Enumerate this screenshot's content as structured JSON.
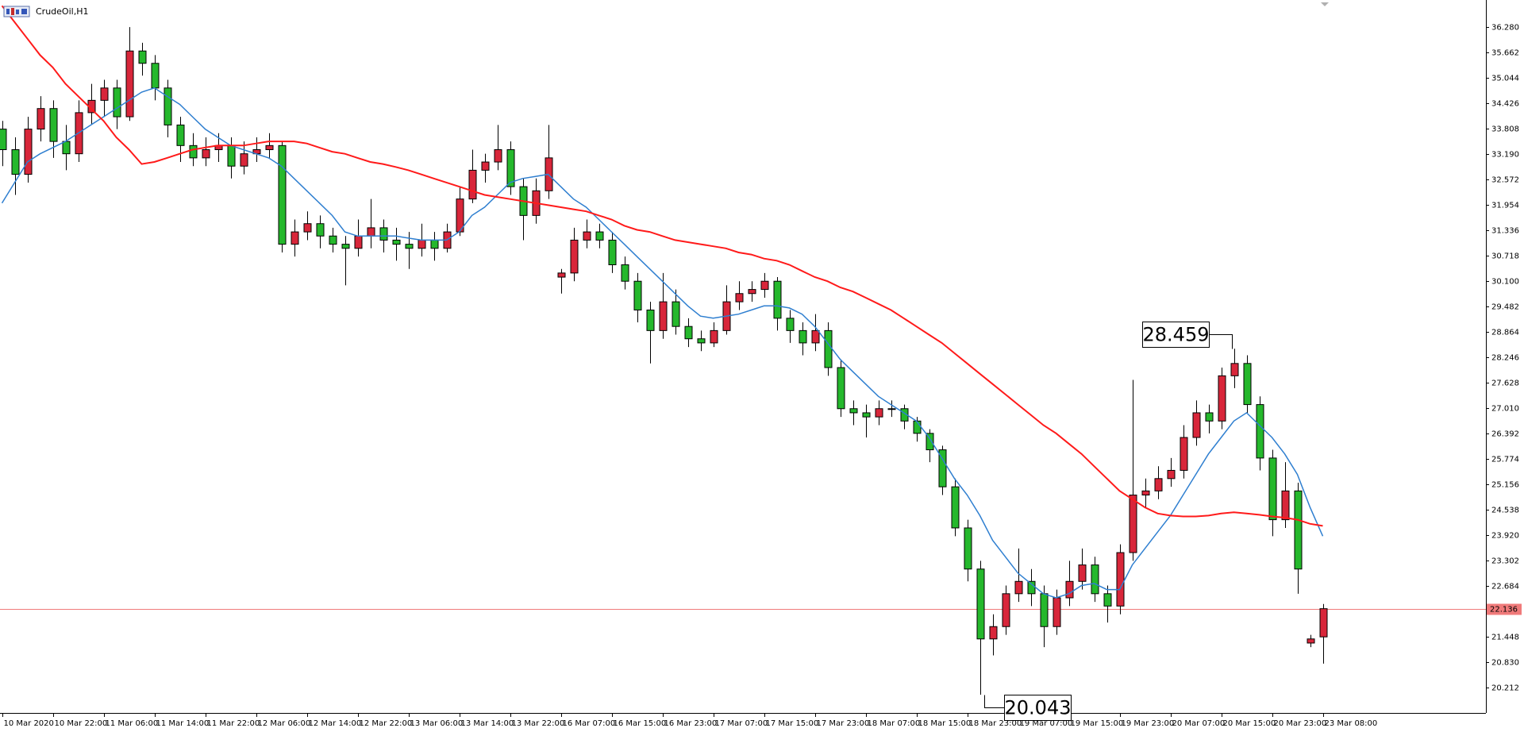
{
  "chart_data": {
    "type": "candlestick",
    "title": "CrudeOil,H1",
    "categories": [
      "10 Mar 2020",
      null,
      null,
      null,
      "10 Mar 22:00",
      null,
      null,
      null,
      "11 Mar 06:00",
      null,
      null,
      null,
      "11 Mar 14:00",
      null,
      null,
      null,
      "11 Mar 22:00",
      null,
      null,
      null,
      "12 Mar 06:00",
      null,
      null,
      null,
      "12 Mar 14:00",
      null,
      null,
      null,
      "12 Mar 22:00",
      null,
      null,
      null,
      "13 Mar 06:00",
      null,
      null,
      null,
      "13 Mar 14:00",
      null,
      null,
      null,
      "13 Mar 22:00",
      null,
      null,
      null,
      "16 Mar 07:00",
      null,
      null,
      null,
      "16 Mar 15:00",
      null,
      null,
      null,
      "16 Mar 23:00",
      null,
      null,
      null,
      "17 Mar 07:00",
      null,
      null,
      null,
      "17 Mar 15:00",
      null,
      null,
      null,
      "17 Mar 23:00",
      null,
      null,
      null,
      "18 Mar 07:00",
      null,
      null,
      null,
      "18 Mar 15:00",
      null,
      null,
      null,
      "18 Mar 23:00",
      null,
      null,
      null,
      "19 Mar 07:00",
      null,
      null,
      null,
      "19 Mar 15:00",
      null,
      null,
      null,
      "19 Mar 23:00",
      null,
      null,
      null,
      "20 Mar 07:00",
      null,
      null,
      null,
      "20 Mar 15:00",
      null,
      null,
      null,
      "20 Mar 23:00",
      null,
      null,
      null,
      "23 Mar 08:00"
    ],
    "open": [
      33.8,
      33.3,
      32.7,
      33.8,
      34.3,
      33.5,
      33.2,
      34.2,
      34.5,
      34.8,
      34.1,
      35.7,
      35.4,
      34.8,
      33.9,
      33.4,
      33.1,
      33.3,
      33.4,
      32.9,
      33.2,
      33.3,
      33.4,
      31.0,
      31.3,
      31.5,
      31.2,
      31.0,
      30.9,
      31.2,
      31.4,
      31.1,
      31.0,
      30.9,
      31.1,
      30.9,
      31.3,
      32.1,
      32.8,
      33.0,
      33.3,
      32.4,
      31.7,
      32.3,
      30.2,
      30.3,
      31.1,
      31.3,
      31.1,
      30.5,
      30.1,
      29.4,
      28.9,
      29.6,
      29.0,
      28.7,
      28.6,
      28.9,
      29.6,
      29.8,
      29.9,
      30.1,
      29.2,
      28.9,
      28.6,
      28.9,
      28.0,
      27.0,
      26.9,
      26.8,
      27.0,
      27.0,
      26.7,
      26.4,
      26.0,
      25.1,
      24.1,
      23.1,
      21.4,
      21.7,
      22.5,
      22.8,
      22.5,
      21.7,
      22.4,
      22.8,
      23.2,
      22.5,
      22.2,
      23.5,
      24.9,
      25.0,
      25.3,
      25.5,
      26.3,
      26.9,
      26.7,
      27.8,
      28.1,
      27.1,
      25.8,
      24.3,
      25.0,
      21.3,
      21.45
    ],
    "high": [
      34.0,
      33.6,
      34.1,
      34.6,
      34.5,
      33.9,
      34.5,
      34.9,
      35.0,
      35.0,
      36.28,
      35.9,
      35.6,
      35.0,
      34.1,
      33.7,
      33.6,
      33.7,
      33.6,
      33.5,
      33.6,
      33.7,
      33.5,
      31.6,
      31.8,
      31.7,
      31.4,
      31.2,
      31.6,
      32.1,
      31.6,
      31.4,
      31.3,
      31.5,
      31.3,
      31.5,
      32.4,
      33.3,
      33.2,
      33.9,
      33.5,
      32.6,
      32.6,
      33.9,
      30.4,
      31.4,
      31.6,
      31.5,
      31.3,
      30.7,
      30.3,
      29.6,
      30.3,
      29.9,
      29.2,
      28.9,
      29.1,
      30.0,
      30.1,
      30.1,
      30.3,
      30.2,
      29.4,
      29.1,
      29.3,
      29.1,
      28.2,
      27.2,
      27.1,
      27.2,
      27.2,
      27.1,
      26.8,
      26.5,
      26.1,
      25.3,
      24.3,
      23.3,
      22.0,
      22.7,
      23.6,
      23.1,
      22.7,
      22.6,
      23.3,
      23.6,
      23.4,
      22.7,
      23.7,
      27.7,
      25.3,
      25.6,
      25.8,
      26.6,
      27.2,
      27.1,
      28.0,
      28.459,
      28.3,
      27.3,
      26.0,
      25.7,
      25.2,
      21.5,
      22.25
    ],
    "low": [
      32.9,
      32.2,
      32.5,
      33.5,
      33.1,
      32.8,
      33.0,
      33.9,
      34.1,
      33.8,
      34.0,
      35.1,
      34.5,
      33.6,
      33.0,
      32.9,
      32.9,
      33.0,
      32.6,
      32.7,
      33.0,
      33.1,
      30.8,
      30.7,
      31.1,
      30.9,
      30.8,
      30.0,
      30.7,
      30.9,
      30.8,
      30.6,
      30.4,
      30.7,
      30.6,
      30.8,
      31.2,
      32.0,
      32.5,
      32.8,
      32.2,
      31.1,
      31.5,
      32.1,
      29.8,
      30.1,
      30.9,
      30.9,
      30.3,
      29.9,
      29.1,
      28.1,
      28.7,
      28.8,
      28.5,
      28.4,
      28.5,
      28.8,
      29.4,
      29.6,
      29.7,
      28.9,
      28.6,
      28.3,
      28.4,
      27.8,
      26.8,
      26.6,
      26.3,
      26.6,
      26.8,
      26.5,
      26.2,
      25.7,
      24.9,
      23.9,
      22.8,
      20.043,
      21.0,
      21.5,
      22.3,
      22.2,
      21.2,
      21.5,
      22.2,
      22.6,
      22.3,
      21.8,
      22.0,
      23.3,
      24.6,
      24.8,
      25.1,
      25.3,
      26.1,
      26.4,
      26.5,
      27.5,
      26.9,
      25.5,
      23.9,
      24.1,
      22.5,
      21.2,
      20.8
    ],
    "close": [
      33.3,
      32.7,
      33.8,
      34.3,
      33.5,
      33.2,
      34.2,
      34.5,
      34.8,
      34.1,
      35.7,
      35.4,
      34.8,
      33.9,
      33.4,
      33.1,
      33.3,
      33.4,
      32.9,
      33.2,
      33.3,
      33.4,
      31.0,
      31.3,
      31.5,
      31.2,
      31.0,
      30.9,
      31.2,
      31.4,
      31.1,
      31.0,
      30.9,
      31.1,
      30.9,
      31.3,
      32.1,
      32.8,
      33.0,
      33.3,
      32.4,
      31.7,
      32.3,
      33.1,
      30.3,
      31.1,
      31.3,
      31.1,
      30.5,
      30.1,
      29.4,
      28.9,
      29.6,
      29.0,
      28.7,
      28.6,
      28.9,
      29.6,
      29.8,
      29.9,
      30.1,
      29.2,
      28.9,
      28.6,
      28.9,
      28.0,
      27.0,
      26.9,
      26.8,
      27.0,
      27.0,
      26.7,
      26.4,
      26.0,
      25.1,
      24.1,
      23.1,
      21.4,
      21.7,
      22.5,
      22.8,
      22.5,
      21.7,
      22.4,
      22.8,
      23.2,
      22.5,
      22.2,
      23.5,
      24.9,
      25.0,
      25.3,
      25.5,
      26.3,
      26.9,
      26.7,
      27.8,
      28.1,
      27.1,
      25.8,
      24.3,
      25.0,
      23.1,
      21.4,
      22.136
    ],
    "up_color": "#d8263a",
    "down_color": "#25b82c",
    "wick_color": "#000000",
    "overlays": [
      {
        "color": "#2f7fd0",
        "values": [
          32.0,
          32.5,
          33.0,
          33.2,
          33.35,
          33.5,
          33.7,
          33.9,
          34.1,
          34.3,
          34.5,
          34.7,
          34.8,
          34.6,
          34.4,
          34.1,
          33.8,
          33.6,
          33.4,
          33.3,
          33.2,
          33.1,
          32.9,
          32.6,
          32.3,
          32.0,
          31.7,
          31.3,
          31.2,
          31.2,
          31.2,
          31.2,
          31.15,
          31.1,
          31.1,
          31.1,
          31.3,
          31.7,
          31.9,
          32.2,
          32.5,
          32.6,
          32.65,
          32.7,
          32.4,
          32.1,
          31.9,
          31.6,
          31.3,
          31.0,
          30.7,
          30.4,
          30.1,
          29.8,
          29.5,
          29.25,
          29.2,
          29.25,
          29.3,
          29.4,
          29.5,
          29.5,
          29.45,
          29.3,
          29.0,
          28.6,
          28.2,
          27.9,
          27.6,
          27.3,
          27.1,
          26.9,
          26.7,
          26.3,
          25.8,
          25.3,
          24.9,
          24.4,
          23.8,
          23.4,
          23.0,
          22.75,
          22.5,
          22.4,
          22.5,
          22.7,
          22.75,
          22.6,
          22.6,
          23.2,
          23.6,
          24.0,
          24.4,
          24.9,
          25.4,
          25.9,
          26.3,
          26.7,
          26.9,
          26.6,
          26.3,
          25.9,
          25.4,
          24.6,
          23.9
        ]
      },
      {
        "color": "#ff1a1a",
        "values": [
          36.8,
          36.4,
          36.0,
          35.6,
          35.3,
          34.9,
          34.6,
          34.3,
          34.0,
          33.6,
          33.3,
          32.95,
          33.0,
          33.1,
          33.2,
          33.3,
          33.35,
          33.4,
          33.4,
          33.4,
          33.45,
          33.5,
          33.5,
          33.5,
          33.45,
          33.35,
          33.25,
          33.2,
          33.1,
          33.0,
          32.95,
          32.88,
          32.8,
          32.7,
          32.6,
          32.5,
          32.4,
          32.3,
          32.2,
          32.15,
          32.1,
          32.05,
          32.0,
          31.95,
          31.9,
          31.85,
          31.8,
          31.7,
          31.6,
          31.45,
          31.35,
          31.3,
          31.2,
          31.1,
          31.05,
          31.0,
          30.95,
          30.9,
          30.8,
          30.75,
          30.65,
          30.6,
          30.5,
          30.35,
          30.2,
          30.1,
          29.95,
          29.85,
          29.7,
          29.55,
          29.4,
          29.2,
          29.0,
          28.8,
          28.6,
          28.35,
          28.1,
          27.85,
          27.6,
          27.35,
          27.1,
          26.85,
          26.6,
          26.4,
          26.15,
          25.9,
          25.6,
          25.3,
          25.0,
          24.8,
          24.6,
          24.45,
          24.4,
          24.38,
          24.38,
          24.4,
          24.45,
          24.48,
          24.45,
          24.42,
          24.38,
          24.35,
          24.3,
          24.2,
          24.15
        ]
      }
    ],
    "annotations": [
      28.459,
      20.043
    ],
    "price_line": 22.136,
    "price_line_color": "#f07a7a",
    "ylim": [
      19.6,
      36.94
    ],
    "yticks": [
      {
        "value": 36.28,
        "label": "36.280"
      },
      35.662,
      35.044,
      34.426,
      33.808,
      {
        "value": 33.19,
        "label": "33.190"
      },
      32.572,
      31.954,
      31.336,
      30.718,
      {
        "value": 30.1,
        "label": "30.100"
      },
      29.482,
      28.864,
      28.246,
      27.628,
      {
        "value": 27.01,
        "label": "27.010"
      },
      26.392,
      25.774,
      25.156,
      24.538,
      {
        "value": 23.92,
        "label": "23.920"
      },
      23.302,
      22.684,
      21.448,
      {
        "value": 20.83,
        "label": "20.830"
      },
      20.212
    ]
  }
}
